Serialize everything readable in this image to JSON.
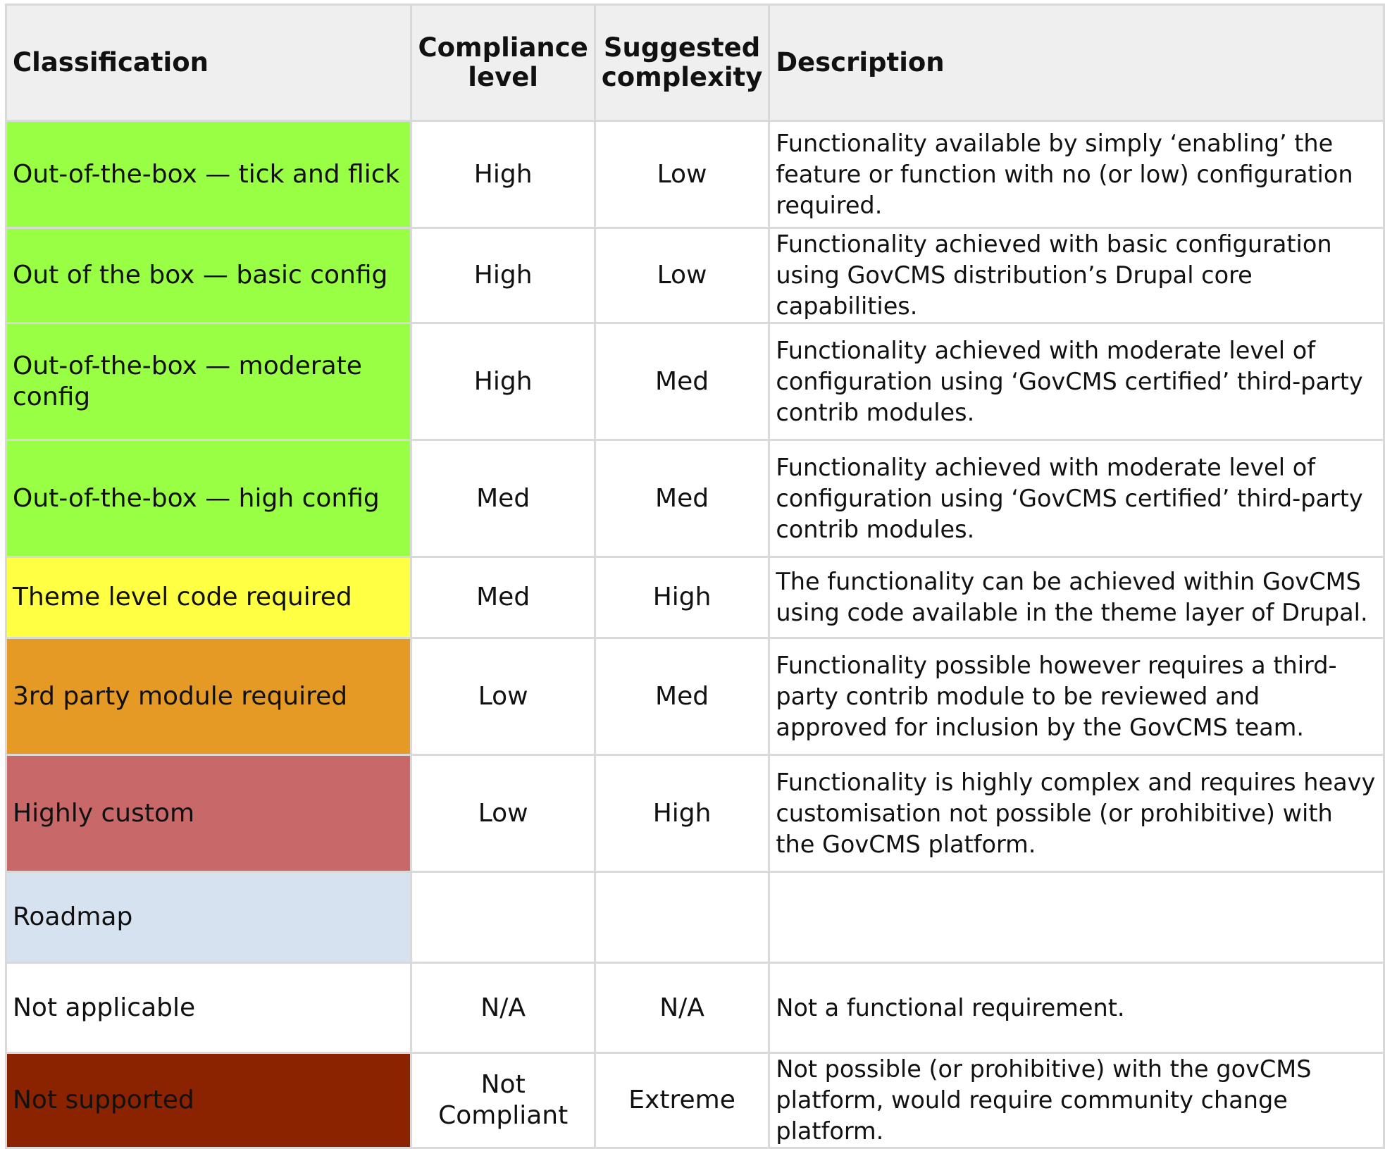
{
  "table": {
    "headers": {
      "classification": "Classification",
      "compliance_level": "Compliance level",
      "suggested_complexity": "Suggested complexity",
      "description": "Description"
    },
    "rows": [
      {
        "classification": "Out-of-the-box — tick and flick",
        "compliance": "High",
        "complexity": "Low",
        "description": "Functionality available by simply ‘enabling’ the feature or function with no (or low) configuration required.",
        "color": "#99ff44"
      },
      {
        "classification": "Out of the box — basic config",
        "compliance": "High",
        "complexity": "Low",
        "description": "Functionality achieved with basic configuration using GovCMS distribution’s Drupal core capabilities.",
        "color": "#99ff44"
      },
      {
        "classification": "Out-of-the-box — moderate config",
        "compliance": "High",
        "complexity": "Med",
        "description": "Functionality achieved with moderate level of configuration using ‘GovCMS certified’ third-party contrib modules.",
        "color": "#99ff44"
      },
      {
        "classification": "Out-of-the-box — high config",
        "compliance": "Med",
        "complexity": "Med",
        "description": "Functionality achieved with moderate level of configuration using ‘GovCMS certified’ third-party contrib modules.",
        "color": "#99ff44"
      },
      {
        "classification": "Theme level code required",
        "compliance": "Med",
        "complexity": "High",
        "description": "The functionality can be achieved within GovCMS using code available in the theme layer of Drupal.",
        "color": "#ffff44"
      },
      {
        "classification": "3rd party module required",
        "compliance": "Low",
        "complexity": "Med",
        "description": "Functionality possible however requires a third-party contrib module to be reviewed and approved for inclusion by the GovCMS team.",
        "color": "#e69a26"
      },
      {
        "classification": "Highly custom",
        "compliance": "Low",
        "complexity": "High",
        "description": "Functionality is highly complex and requires heavy customisation not possible (or prohibitive) with the GovCMS platform.",
        "color": "#c96869"
      },
      {
        "classification": "Roadmap",
        "compliance": "",
        "complexity": "",
        "description": "",
        "color": "#d6e2f0"
      },
      {
        "classification": "Not applicable",
        "compliance": "N/A",
        "complexity": "N/A",
        "description": "Not a functional requirement.",
        "color": "#ffffff"
      },
      {
        "classification": "Not supported",
        "compliance": "Not Compliant",
        "complexity": "Extreme",
        "description": "Not possible (or prohibitive) with the govCMS platform, would require community change platform.",
        "color": "#8b2200"
      }
    ]
  }
}
